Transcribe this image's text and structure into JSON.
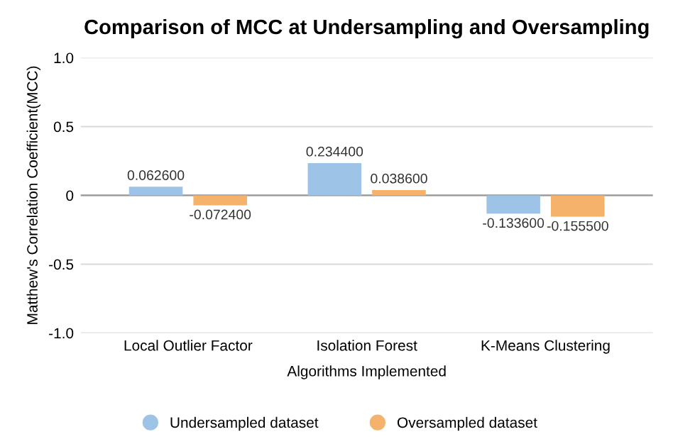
{
  "chart_data": {
    "type": "bar",
    "title": "Comparison of MCC at Undersampling and Oversampling",
    "xlabel": "Algorithms Implemented",
    "ylabel": "Matthew's Correlation Coefficient(MCC)",
    "categories": [
      "Local Outlier Factor",
      "Isolation Forest",
      "K-Means Clustering"
    ],
    "series": [
      {
        "name": "Undersampled dataset",
        "color": "#9dc3e6",
        "values": [
          0.0626,
          0.2344,
          -0.1336
        ],
        "value_labels": [
          "0.062600",
          "0.234400",
          "-0.133600"
        ]
      },
      {
        "name": "Oversampled dataset",
        "color": "#f4b26a",
        "values": [
          -0.0724,
          0.0386,
          -0.1555
        ],
        "value_labels": [
          "-0.072400",
          "0.038600",
          "-0.155500"
        ]
      }
    ],
    "ylim": [
      -1.0,
      1.0
    ],
    "yticks": [
      {
        "value": -1.0,
        "label": "-1.0"
      },
      {
        "value": -0.5,
        "label": "-0.5"
      },
      {
        "value": 0,
        "label": "0"
      },
      {
        "value": 0.5,
        "label": "0.5"
      },
      {
        "value": 1.0,
        "label": "1.0"
      }
    ],
    "grid": "y",
    "legend": "bottom"
  }
}
